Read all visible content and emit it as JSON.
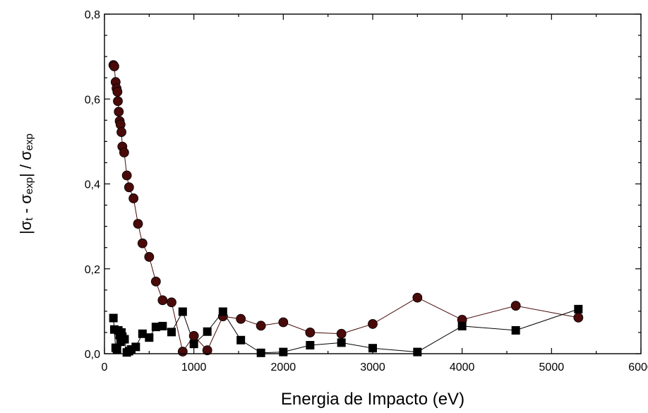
{
  "chart_data": {
    "type": "scatter",
    "xlabel": "Energia de Impacto (eV)",
    "ylabel": {
      "abs_open": "|",
      "sigma": "σ",
      "sub_t": "t",
      "minus": " - ",
      "sub_exp": "exp",
      "abs_close": "|",
      "divide": " / "
    },
    "xlim": [
      0,
      6000
    ],
    "ylim": [
      0,
      0.8
    ],
    "x_ticks": [
      "0",
      "1000",
      "2000",
      "3000",
      "4000",
      "5000",
      "6000"
    ],
    "y_ticks": [
      "0,0",
      "0,2",
      "0,4",
      "0,6",
      "0,8"
    ],
    "legend": "none",
    "grid": false,
    "series": [
      {
        "marker": "circle",
        "color": "#4a0a0a",
        "points": [
          [
            100,
            0.68
          ],
          [
            110,
            0.677
          ],
          [
            125,
            0.64
          ],
          [
            135,
            0.625
          ],
          [
            145,
            0.617
          ],
          [
            150,
            0.595
          ],
          [
            160,
            0.57
          ],
          [
            170,
            0.548
          ],
          [
            180,
            0.54
          ],
          [
            190,
            0.522
          ],
          [
            200,
            0.488
          ],
          [
            220,
            0.474
          ],
          [
            250,
            0.42
          ],
          [
            275,
            0.392
          ],
          [
            325,
            0.366
          ],
          [
            375,
            0.306
          ],
          [
            425,
            0.26
          ],
          [
            500,
            0.228
          ],
          [
            575,
            0.17
          ],
          [
            650,
            0.126
          ],
          [
            750,
            0.121
          ],
          [
            875,
            0.005
          ],
          [
            1000,
            0.042
          ],
          [
            1150,
            0.008
          ],
          [
            1325,
            0.088
          ],
          [
            1525,
            0.082
          ],
          [
            1750,
            0.066
          ],
          [
            2000,
            0.074
          ],
          [
            2300,
            0.05
          ],
          [
            2650,
            0.047
          ],
          [
            3000,
            0.07
          ],
          [
            3500,
            0.132
          ],
          [
            4000,
            0.08
          ],
          [
            4600,
            0.113
          ],
          [
            5300,
            0.085
          ]
        ]
      },
      {
        "marker": "square",
        "color": "#000000",
        "points": [
          [
            100,
            0.084
          ],
          [
            110,
            0.057
          ],
          [
            125,
            0.014
          ],
          [
            140,
            0.009
          ],
          [
            155,
            0.055
          ],
          [
            170,
            0.044
          ],
          [
            180,
            0.028
          ],
          [
            190,
            0.05
          ],
          [
            200,
            0.04
          ],
          [
            225,
            0.034
          ],
          [
            250,
            0.003
          ],
          [
            275,
            0.006
          ],
          [
            300,
            0.01
          ],
          [
            350,
            0.016
          ],
          [
            425,
            0.047
          ],
          [
            500,
            0.038
          ],
          [
            575,
            0.063
          ],
          [
            650,
            0.065
          ],
          [
            750,
            0.051
          ],
          [
            875,
            0.099
          ],
          [
            1000,
            0.023
          ],
          [
            1150,
            0.052
          ],
          [
            1325,
            0.099
          ],
          [
            1525,
            0.032
          ],
          [
            1750,
            0.002
          ],
          [
            2000,
            0.004
          ],
          [
            2300,
            0.02
          ],
          [
            2650,
            0.026
          ],
          [
            3000,
            0.013
          ],
          [
            3500,
            0.004
          ],
          [
            4000,
            0.065
          ],
          [
            4600,
            0.055
          ],
          [
            5300,
            0.105
          ]
        ]
      }
    ]
  }
}
